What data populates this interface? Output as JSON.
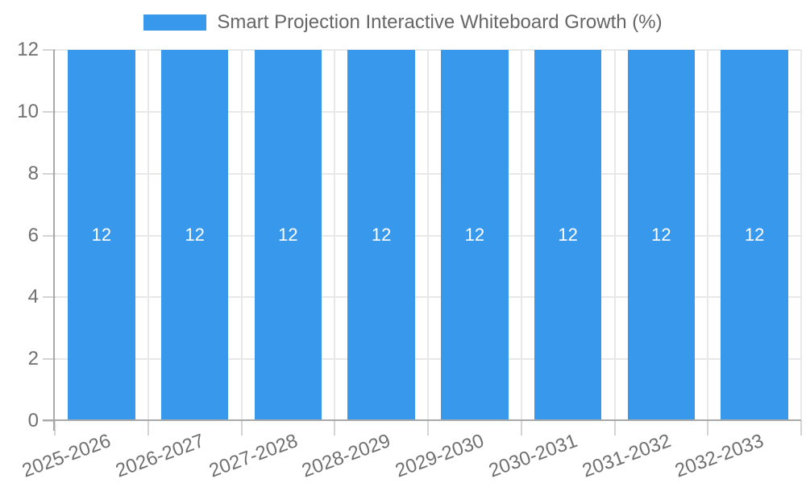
{
  "chart_data": {
    "type": "bar",
    "title": "Smart Projection Interactive Whiteboard Growth (%)",
    "categories": [
      "2025-2026",
      "2026-2027",
      "2027-2028",
      "2028-2029",
      "2029-2030",
      "2030-2031",
      "2031-2032",
      "2032-2033"
    ],
    "series": [
      {
        "name": "Smart Projection Interactive Whiteboard Growth (%)",
        "values": [
          12,
          12,
          12,
          12,
          12,
          12,
          12,
          12
        ]
      }
    ],
    "xlabel": "",
    "ylabel": "",
    "ylim": [
      0,
      12
    ],
    "yticks": [
      0,
      2,
      4,
      6,
      8,
      10,
      12
    ],
    "grid": true,
    "legend_position": "top",
    "bar_label_format": "plain-integer",
    "colors": {
      "bar": "#3899ec",
      "bar_label": "#ffffff",
      "axis_line": "#a9a9a9",
      "gridline": "#e8e8e8",
      "tick_mark": "#d4d4d4",
      "tick_text": "#707070",
      "legend_text": "#666666",
      "background": "#ffffff"
    }
  }
}
